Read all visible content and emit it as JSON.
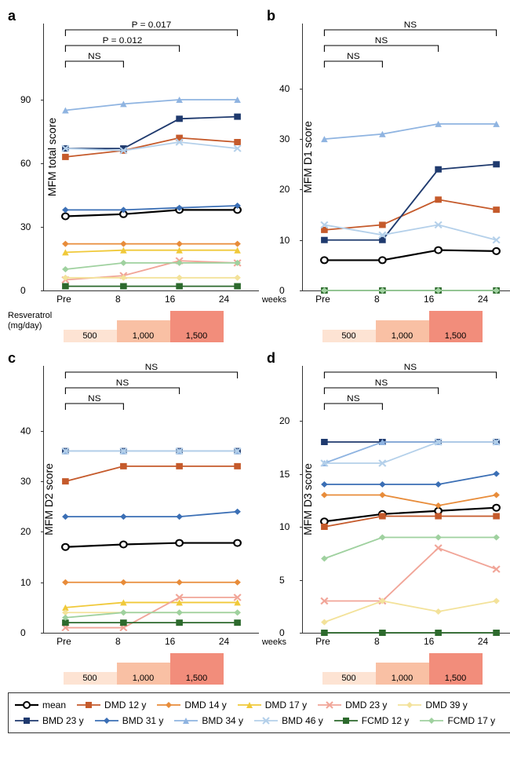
{
  "timepoints": [
    "Pre",
    "8",
    "16",
    "24"
  ],
  "x_unit": "weeks",
  "dosage": {
    "label_line1": "Resveratrol",
    "label_line2": "(mg/day)",
    "levels": [
      {
        "text": "500",
        "color": "#fde3d3",
        "heightPct": 40
      },
      {
        "text": "1,000",
        "color": "#f9c0a4",
        "heightPct": 70
      },
      {
        "text": "1,500",
        "color": "#f28d7b",
        "heightPct": 100
      }
    ]
  },
  "series": [
    {
      "id": "mean",
      "label": "mean",
      "color": "#000000",
      "marker": "circle-open",
      "width": 2.2
    },
    {
      "id": "dmd12",
      "label": "DMD 12 y",
      "color": "#c55a2b",
      "marker": "square",
      "width": 1.8
    },
    {
      "id": "dmd14",
      "label": "DMD 14 y",
      "color": "#e88c3a",
      "marker": "diamond",
      "width": 1.8
    },
    {
      "id": "dmd17",
      "label": "DMD 17 y",
      "color": "#f0c93a",
      "marker": "triangle",
      "width": 1.8
    },
    {
      "id": "dmd23",
      "label": "DMD 23 y",
      "color": "#f1a598",
      "marker": "x",
      "width": 1.8
    },
    {
      "id": "dmd39",
      "label": "DMD 39 y",
      "color": "#f3e29a",
      "marker": "diamond",
      "width": 1.8
    },
    {
      "id": "bmd23",
      "label": "BMD 23 y",
      "color": "#1f3a6e",
      "marker": "square",
      "width": 1.8
    },
    {
      "id": "bmd31",
      "label": "BMD 31 y",
      "color": "#3b6fb5",
      "marker": "diamond",
      "width": 1.8
    },
    {
      "id": "bmd34",
      "label": "BMD 34 y",
      "color": "#8fb4e1",
      "marker": "triangle",
      "width": 1.8
    },
    {
      "id": "bmd46",
      "label": "BMD 46 y",
      "color": "#b4d0ea",
      "marker": "x",
      "width": 1.8
    },
    {
      "id": "fcmd12",
      "label": "FCMD 12 y",
      "color": "#2d6a2d",
      "marker": "square",
      "width": 1.8
    },
    {
      "id": "fcmd17",
      "label": "FCMD 17 y",
      "color": "#9fd19f",
      "marker": "diamond",
      "width": 1.8
    }
  ],
  "panels": {
    "a": {
      "label": "a",
      "ylabel": "MFM total score",
      "ylim": [
        0,
        100
      ],
      "ytick_step": 30,
      "sig": [
        {
          "to": 1,
          "text": "NS"
        },
        {
          "to": 2,
          "text": "P = 0.012"
        },
        {
          "to": 3,
          "text": "P = 0.017"
        }
      ],
      "data": {
        "mean": [
          35,
          36,
          38,
          38
        ],
        "dmd12": [
          63,
          66,
          72,
          70
        ],
        "dmd14": [
          22,
          22,
          22,
          22
        ],
        "dmd17": [
          18,
          19,
          19,
          19
        ],
        "dmd23": [
          5,
          7,
          14,
          13
        ],
        "dmd39": [
          6,
          6,
          6,
          6
        ],
        "bmd23": [
          67,
          67,
          81,
          82
        ],
        "bmd31": [
          38,
          38,
          39,
          40
        ],
        "bmd34": [
          85,
          88,
          90,
          90
        ],
        "bmd46": [
          67,
          66,
          70,
          67
        ],
        "fcmd12": [
          2,
          2,
          2,
          2
        ],
        "fcmd17": [
          10,
          13,
          13,
          13
        ]
      }
    },
    "b": {
      "label": "b",
      "ylabel": "MFM D1 score",
      "ylim": [
        0,
        42
      ],
      "ytick_step": 10,
      "sig": [
        {
          "to": 1,
          "text": "NS"
        },
        {
          "to": 2,
          "text": "NS"
        },
        {
          "to": 3,
          "text": "NS"
        }
      ],
      "data": {
        "mean": [
          6,
          6,
          8,
          7.8
        ],
        "dmd12": [
          12,
          13,
          18,
          16
        ],
        "bmd23": [
          10,
          10,
          24,
          25
        ],
        "bmd34": [
          30,
          31,
          33,
          33
        ],
        "bmd46": [
          13,
          11,
          13,
          10
        ],
        "fcmd12": [
          0,
          0,
          0,
          0
        ],
        "fcmd17": [
          0,
          0,
          0,
          0
        ]
      }
    },
    "c": {
      "label": "c",
      "ylabel": "MFM D2 score",
      "ylim": [
        0,
        42
      ],
      "ytick_step": 10,
      "sig": [
        {
          "to": 1,
          "text": "NS"
        },
        {
          "to": 2,
          "text": "NS"
        },
        {
          "to": 3,
          "text": "NS"
        }
      ],
      "data": {
        "mean": [
          17,
          17.5,
          17.8,
          17.8
        ],
        "dmd12": [
          30,
          33,
          33,
          33
        ],
        "dmd14": [
          10,
          10,
          10,
          10
        ],
        "dmd17": [
          5,
          6,
          6,
          6
        ],
        "dmd23": [
          1,
          1,
          7,
          7
        ],
        "dmd39": [
          4,
          4,
          4,
          4
        ],
        "bmd23": [
          36,
          36,
          36,
          36
        ],
        "bmd31": [
          23,
          23,
          23,
          24
        ],
        "bmd34": [
          36,
          36,
          36,
          36
        ],
        "bmd46": [
          36,
          36,
          36,
          36
        ],
        "fcmd12": [
          2,
          2,
          2,
          2
        ],
        "fcmd17": [
          3,
          4,
          4,
          4
        ]
      }
    },
    "d": {
      "label": "d",
      "ylabel": "MFM D3 score",
      "ylim": [
        0,
        20
      ],
      "ytick_step": 5,
      "sig": [
        {
          "to": 1,
          "text": "NS"
        },
        {
          "to": 2,
          "text": "NS"
        },
        {
          "to": 3,
          "text": "NS"
        }
      ],
      "data": {
        "mean": [
          10.5,
          11.2,
          11.5,
          11.8
        ],
        "dmd12": [
          10,
          11,
          11,
          11
        ],
        "dmd14": [
          13,
          13,
          12,
          13
        ],
        "dmd23": [
          3,
          3,
          8,
          6
        ],
        "dmd39": [
          1,
          3,
          2,
          3
        ],
        "bmd23": [
          18,
          18,
          18,
          18
        ],
        "bmd31": [
          14,
          14,
          14,
          15
        ],
        "bmd34": [
          16,
          18,
          18,
          18
        ],
        "bmd46": [
          16,
          16,
          18,
          18
        ],
        "fcmd12": [
          0,
          0,
          0,
          0
        ],
        "fcmd17": [
          7,
          9,
          9,
          9
        ]
      }
    }
  }
}
